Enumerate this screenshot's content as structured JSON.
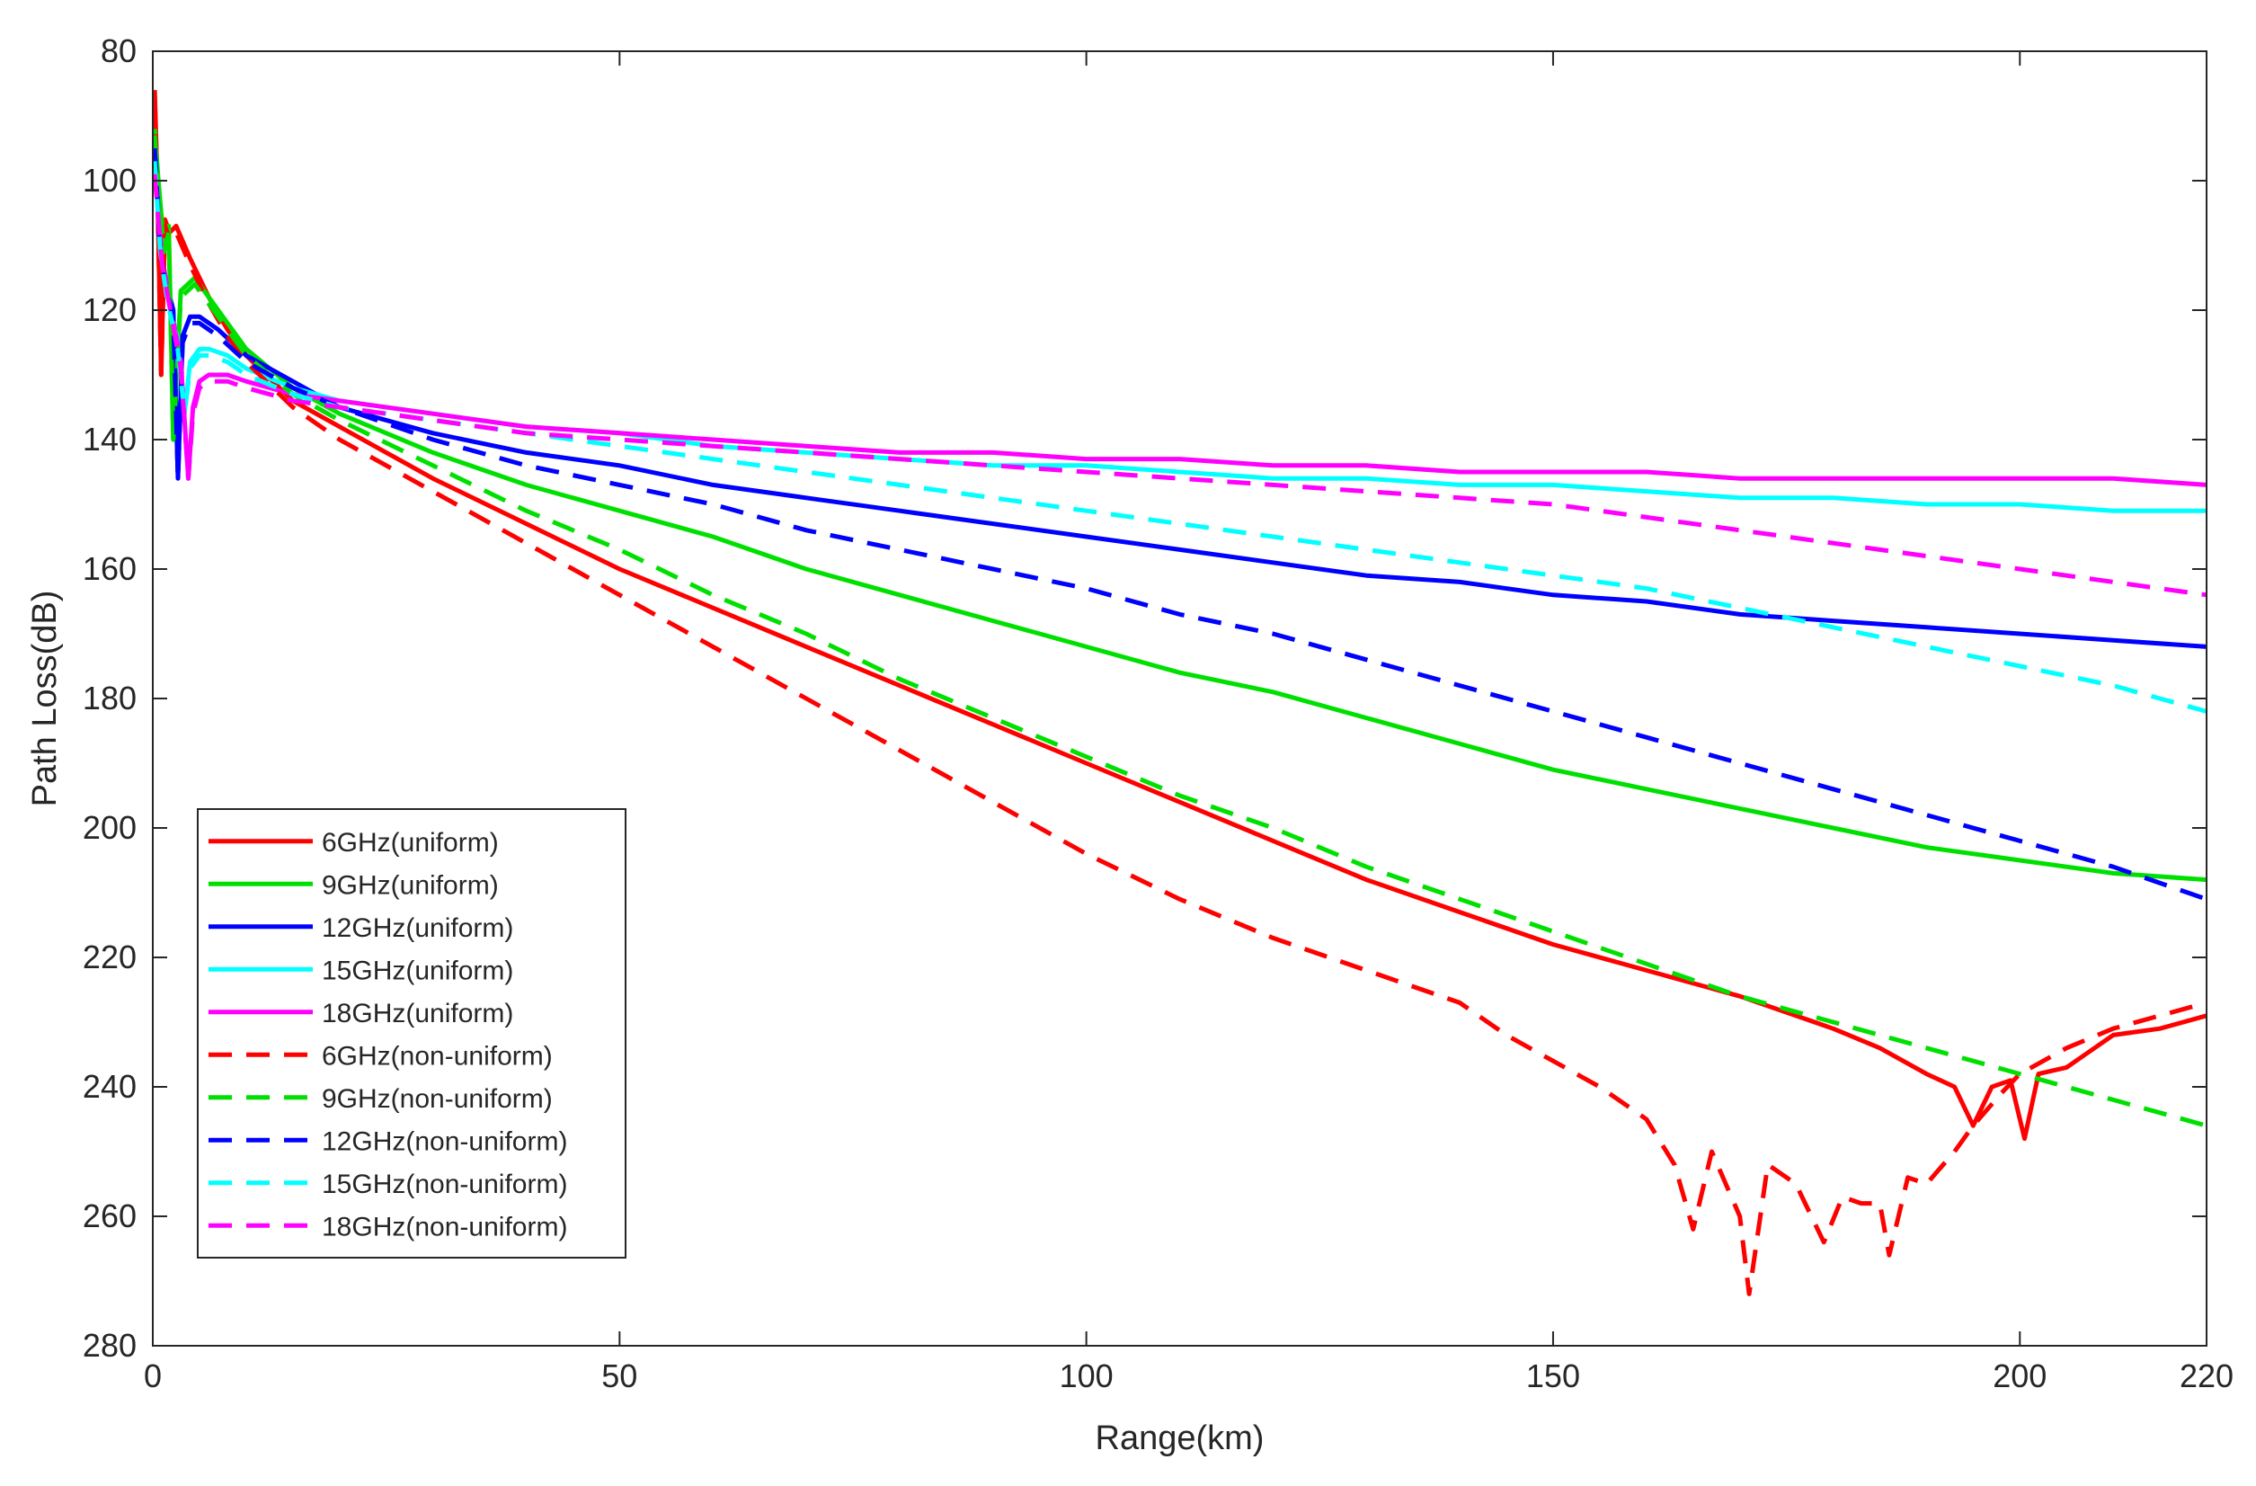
{
  "chart_data": {
    "type": "line",
    "title": "",
    "xlabel": "Range(km)",
    "ylabel": "Path Loss(dB)",
    "xlim": [
      0,
      220
    ],
    "ylim": [
      80,
      280
    ],
    "y_reversed": true,
    "xticks": [
      0,
      50,
      100,
      150,
      200,
      220
    ],
    "yticks": [
      80,
      100,
      120,
      140,
      160,
      180,
      200,
      220,
      240,
      260,
      280
    ],
    "xtick_labels": [
      "0",
      "50",
      "100",
      "150",
      "200",
      "220"
    ],
    "ytick_labels": [
      "80",
      "100",
      "120",
      "140",
      "160",
      "180",
      "200",
      "220",
      "240",
      "260",
      "280"
    ],
    "grid": false,
    "legend_position": "bottom-left",
    "series": [
      {
        "name": "6GHz(uniform)",
        "color": "#ff0000",
        "dash": "solid",
        "x": [
          0.2,
          0.5,
          0.9,
          1.3,
          1.8,
          2.5,
          4,
          6,
          8,
          10,
          15,
          20,
          25,
          30,
          40,
          50,
          60,
          70,
          80,
          90,
          100,
          110,
          120,
          130,
          140,
          150,
          160,
          170,
          180,
          185,
          190,
          193,
          195,
          197,
          199,
          200.5,
          202,
          205,
          207,
          210,
          215,
          220
        ],
        "y": [
          86,
          101,
          130,
          106,
          108,
          107,
          112,
          118,
          123,
          127,
          134,
          138,
          142,
          146,
          153,
          160,
          166,
          172,
          178,
          184,
          190,
          196,
          202,
          208,
          213,
          218,
          222,
          226,
          231,
          234,
          238,
          240,
          246,
          240,
          239,
          248,
          238,
          237,
          235,
          232,
          231,
          229
        ]
      },
      {
        "name": "9GHz(uniform)",
        "color": "#00e000",
        "dash": "solid",
        "x": [
          0.2,
          0.6,
          1.2,
          1.7,
          2.2,
          3,
          4.5,
          7,
          10,
          15,
          20,
          30,
          40,
          50,
          60,
          70,
          80,
          90,
          100,
          110,
          120,
          130,
          140,
          150,
          160,
          170,
          180,
          190,
          200,
          210,
          220
        ],
        "y": [
          92,
          100,
          110,
          107,
          140,
          117,
          115,
          120,
          126,
          132,
          136,
          142,
          147,
          151,
          155,
          160,
          164,
          168,
          172,
          176,
          179,
          183,
          187,
          191,
          194,
          197,
          200,
          203,
          205,
          207,
          208
        ]
      },
      {
        "name": "12GHz(uniform)",
        "color": "#0000ff",
        "dash": "solid",
        "x": [
          0.2,
          0.7,
          1.3,
          2.2,
          2.7,
          3.2,
          4,
          5,
          7,
          10,
          15,
          20,
          30,
          40,
          50,
          60,
          70,
          80,
          90,
          100,
          110,
          120,
          130,
          140,
          150,
          160,
          170,
          180,
          190,
          200,
          210,
          220
        ],
        "y": [
          94,
          108,
          115,
          120,
          146,
          124,
          121,
          121,
          123,
          127,
          131,
          135,
          139,
          142,
          144,
          147,
          149,
          151,
          153,
          155,
          157,
          159,
          161,
          162,
          164,
          165,
          167,
          168,
          169,
          170,
          171,
          172
        ]
      },
      {
        "name": "15GHz(uniform)",
        "color": "#00ffff",
        "dash": "solid",
        "x": [
          0.2,
          0.8,
          1.6,
          2.6,
          3.4,
          4,
          5,
          6,
          8,
          10,
          15,
          20,
          30,
          40,
          50,
          60,
          70,
          80,
          90,
          100,
          110,
          120,
          130,
          140,
          150,
          160,
          170,
          180,
          190,
          200,
          210,
          220
        ],
        "y": [
          96,
          110,
          118,
          124,
          136,
          128,
          126,
          126,
          127,
          129,
          132,
          134,
          136,
          138,
          139,
          141,
          142,
          143,
          144,
          144,
          145,
          146,
          146,
          147,
          147,
          148,
          149,
          149,
          150,
          150,
          151,
          151
        ]
      },
      {
        "name": "18GHz(uniform)",
        "color": "#ff00ff",
        "dash": "solid",
        "x": [
          0.2,
          1,
          2,
          3,
          3.8,
          4.3,
          5,
          6,
          8,
          10,
          15,
          20,
          30,
          40,
          50,
          60,
          70,
          80,
          90,
          100,
          110,
          120,
          130,
          140,
          150,
          160,
          170,
          180,
          190,
          200,
          210,
          220
        ],
        "y": [
          98,
          112,
          120,
          128,
          146,
          135,
          131,
          130,
          130,
          131,
          133,
          134,
          136,
          138,
          139,
          140,
          141,
          142,
          142,
          143,
          143,
          144,
          144,
          145,
          145,
          145,
          146,
          146,
          146,
          146,
          146,
          147
        ]
      },
      {
        "name": "6GHz(non-uniform)",
        "color": "#ff0000",
        "dash": "dashed",
        "x": [
          0.2,
          0.5,
          0.9,
          1.3,
          1.8,
          2.5,
          4,
          6,
          8,
          10,
          15,
          20,
          25,
          30,
          40,
          50,
          60,
          70,
          80,
          90,
          100,
          110,
          120,
          130,
          140,
          145,
          150,
          155,
          160,
          163,
          165,
          167,
          170,
          171,
          173,
          176,
          179,
          181,
          183,
          185,
          186,
          188,
          190,
          193,
          195,
          198,
          200,
          205,
          210,
          215,
          220
        ],
        "y": [
          87,
          102,
          130,
          107,
          109,
          108,
          113,
          119,
          124,
          128,
          135,
          140,
          144,
          148,
          156,
          164,
          172,
          180,
          188,
          196,
          204,
          211,
          217,
          222,
          227,
          232,
          236,
          240,
          245,
          252,
          262,
          250,
          260,
          272,
          252,
          255,
          264,
          257,
          258,
          258,
          266,
          254,
          255,
          250,
          246,
          241,
          238,
          234,
          231,
          229,
          227
        ]
      },
      {
        "name": "9GHz(non-uniform)",
        "color": "#00e000",
        "dash": "dashed",
        "x": [
          0.2,
          0.6,
          1.2,
          1.7,
          2.2,
          3,
          4.5,
          7,
          10,
          15,
          20,
          30,
          40,
          50,
          60,
          70,
          80,
          90,
          100,
          110,
          120,
          130,
          140,
          150,
          160,
          170,
          180,
          190,
          200,
          210,
          220
        ],
        "y": [
          93,
          101,
          111,
          108,
          140,
          118,
          116,
          121,
          127,
          133,
          137,
          144,
          151,
          157,
          164,
          170,
          177,
          183,
          189,
          195,
          200,
          206,
          211,
          216,
          221,
          226,
          230,
          234,
          238,
          242,
          246
        ]
      },
      {
        "name": "12GHz(non-uniform)",
        "color": "#0000ff",
        "dash": "dashed",
        "x": [
          0.2,
          0.7,
          1.3,
          2.2,
          2.7,
          3.2,
          4,
          5,
          7,
          10,
          15,
          20,
          30,
          40,
          50,
          60,
          70,
          80,
          90,
          100,
          110,
          120,
          130,
          140,
          150,
          160,
          170,
          180,
          190,
          200,
          210,
          220
        ],
        "y": [
          95,
          109,
          116,
          121,
          146,
          125,
          122,
          122,
          124,
          128,
          132,
          135,
          140,
          144,
          147,
          150,
          154,
          157,
          160,
          163,
          167,
          170,
          174,
          178,
          182,
          186,
          190,
          194,
          198,
          202,
          206,
          211
        ]
      },
      {
        "name": "15GHz(non-uniform)",
        "color": "#00ffff",
        "dash": "dashed",
        "x": [
          0.2,
          0.8,
          1.6,
          2.6,
          3.4,
          4,
          5,
          6,
          8,
          10,
          15,
          20,
          30,
          40,
          50,
          60,
          70,
          80,
          90,
          100,
          110,
          120,
          130,
          140,
          150,
          160,
          170,
          180,
          190,
          200,
          210,
          220
        ],
        "y": [
          97,
          111,
          119,
          125,
          136,
          129,
          127,
          127,
          128,
          130,
          133,
          135,
          137,
          139,
          141,
          143,
          145,
          147,
          149,
          151,
          153,
          155,
          157,
          159,
          161,
          163,
          166,
          169,
          172,
          175,
          178,
          182
        ]
      },
      {
        "name": "18GHz(non-uniform)",
        "color": "#ff00ff",
        "dash": "dashed",
        "x": [
          0.2,
          1,
          2,
          3,
          3.8,
          4.3,
          5,
          6,
          8,
          10,
          15,
          20,
          30,
          40,
          50,
          60,
          70,
          80,
          90,
          100,
          110,
          120,
          130,
          140,
          150,
          160,
          170,
          180,
          190,
          200,
          210,
          220
        ],
        "y": [
          99,
          113,
          121,
          129,
          146,
          136,
          132,
          131,
          131,
          132,
          134,
          135,
          137,
          139,
          140,
          141,
          142,
          143,
          144,
          145,
          146,
          147,
          148,
          149,
          150,
          152,
          154,
          156,
          158,
          160,
          162,
          164
        ]
      }
    ]
  }
}
